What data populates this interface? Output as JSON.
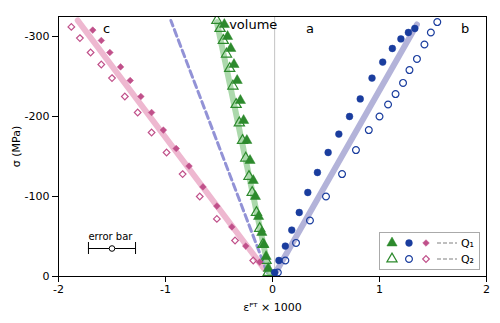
{
  "chart_data": {
    "type": "scatter",
    "xlabel": "εᴾᵀ × 1000",
    "ylabel": "σ (MPa)",
    "xlim": [
      -2,
      2
    ],
    "xticks": [
      -2,
      -1,
      0,
      1,
      2
    ],
    "ylim": [
      0,
      -325
    ],
    "yticks": [
      0,
      -100,
      -200,
      -300
    ],
    "legend": "lower right",
    "series": [
      {
        "type": "line",
        "color": "#e8a0c0",
        "line_style": "solid",
        "x": [
          -0.08,
          -1.82
        ],
        "values": [
          -10,
          -320
        ]
      },
      {
        "type": "line",
        "color": "#7777cc",
        "line_style": "dashed",
        "x": [
          -0.05,
          -0.95
        ],
        "values": [
          -5,
          -320
        ]
      },
      {
        "type": "line",
        "color": "#90cc90",
        "line_style": "solid",
        "x": [
          -0.03,
          -0.52
        ],
        "values": [
          -5,
          -318
        ]
      },
      {
        "type": "line",
        "color": "#9999cc",
        "line_style": "solid",
        "x": [
          0.03,
          1.35
        ],
        "values": [
          -5,
          -315
        ]
      },
      {
        "name": "Q₁",
        "type": "scatter",
        "color": "#2d8a2d",
        "marker": "triangle",
        "x": [
          -0.04,
          -0.06,
          -0.08,
          -0.1,
          -0.13,
          -0.16,
          -0.18,
          -0.21,
          -0.24,
          -0.27,
          -0.3,
          -0.33,
          -0.36,
          -0.39,
          -0.42,
          -0.45
        ],
        "values": [
          -10,
          -25,
          -40,
          -55,
          -75,
          -100,
          -120,
          -145,
          -170,
          -195,
          -220,
          -245,
          -265,
          -285,
          -300,
          -315
        ]
      },
      {
        "name": "Q₂",
        "type": "scatter",
        "color": "#2d8a2d",
        "marker": "triangle-open",
        "x": [
          -0.04,
          -0.06,
          -0.09,
          -0.12,
          -0.15,
          -0.19,
          -0.22,
          -0.25,
          -0.28,
          -0.31,
          -0.34,
          -0.37,
          -0.4,
          -0.43,
          -0.46,
          -0.49,
          -0.52
        ],
        "values": [
          -5,
          -20,
          -40,
          -60,
          -80,
          -105,
          -125,
          -148,
          -170,
          -192,
          -215,
          -238,
          -260,
          -278,
          -295,
          -310,
          -320
        ]
      },
      {
        "name": "Q₁",
        "type": "scatter",
        "color": "#1a3d9e",
        "marker": "circle",
        "x": [
          0.02,
          0.06,
          0.12,
          0.18,
          0.25,
          0.33,
          0.42,
          0.52,
          0.62,
          0.72,
          0.82,
          0.93,
          1.03,
          1.12,
          1.2,
          1.27,
          1.33
        ],
        "values": [
          -5,
          -20,
          -38,
          -58,
          -80,
          -105,
          -130,
          -155,
          -178,
          -200,
          -222,
          -248,
          -268,
          -285,
          -297,
          -305,
          -310
        ]
      },
      {
        "name": "Q₂",
        "type": "scatter",
        "color": "#1a3d9e",
        "marker": "circle-open",
        "x": [
          0.05,
          0.12,
          0.22,
          0.35,
          0.5,
          0.65,
          0.78,
          0.9,
          1.0,
          1.08,
          1.15,
          1.22,
          1.28,
          1.35,
          1.42,
          1.48,
          1.54
        ],
        "values": [
          -5,
          -20,
          -42,
          -70,
          -100,
          -128,
          -158,
          -183,
          -200,
          -215,
          -228,
          -242,
          -258,
          -272,
          -290,
          -305,
          -318
        ]
      },
      {
        "name": "Q₁",
        "type": "scatter",
        "color": "#c0508a",
        "marker": "diamond",
        "x": [
          -0.12,
          -0.25,
          -0.38,
          -0.52,
          -0.65,
          -0.78,
          -0.9,
          -1.02,
          -1.13,
          -1.23,
          -1.33,
          -1.42,
          -1.52,
          -1.6,
          -1.68
        ],
        "values": [
          -18,
          -38,
          -62,
          -88,
          -112,
          -138,
          -160,
          -183,
          -205,
          -225,
          -245,
          -262,
          -280,
          -295,
          -308
        ]
      },
      {
        "name": "Q₂",
        "type": "scatter",
        "color": "#c0508a",
        "marker": "diamond-open",
        "x": [
          -0.18,
          -0.35,
          -0.52,
          -0.68,
          -0.84,
          -0.99,
          -1.13,
          -1.26,
          -1.38,
          -1.5,
          -1.6,
          -1.7,
          -1.8,
          -1.88
        ],
        "values": [
          -20,
          -45,
          -72,
          -100,
          -128,
          -155,
          -180,
          -205,
          -225,
          -248,
          -265,
          -280,
          -298,
          -312
        ]
      }
    ],
    "reference_line": {
      "x": 0.02,
      "color": "grey"
    },
    "error_bar": {
      "x": [
        -1.72,
        -1.28
      ],
      "y": -35,
      "center": -1.5,
      "label": {
        "text": "error bar",
        "x": -1.72,
        "y": -55
      }
    },
    "annotations": [
      {
        "text": "c",
        "x": -1.55,
        "y": -305
      },
      {
        "text": "volume",
        "x": -0.18,
        "y": -310
      },
      {
        "text": "a",
        "x": 0.35,
        "y": -305
      },
      {
        "text": "b",
        "x": 1.8,
        "y": -305
      }
    ]
  }
}
